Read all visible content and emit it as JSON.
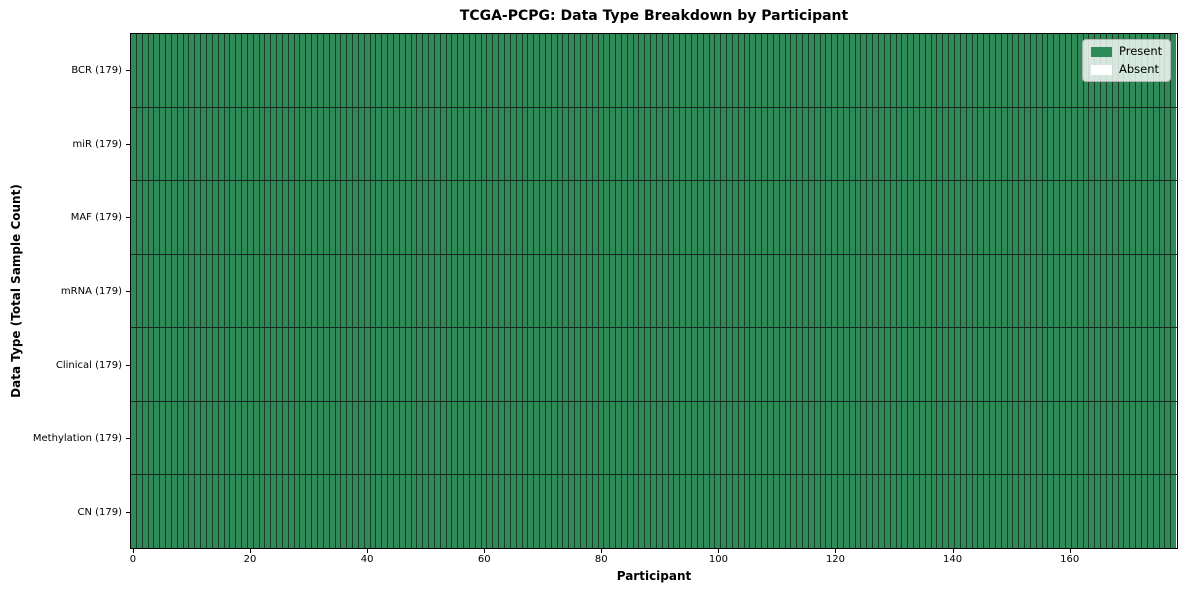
{
  "figure": {
    "title": "TCGA-PCPG: Data Type Breakdown by Participant"
  },
  "legend": {
    "items": [
      {
        "label": "Present",
        "color": "#2e8b57"
      },
      {
        "label": "Absent",
        "color": "#ffffff"
      }
    ]
  },
  "chart_data": {
    "type": "heatmap",
    "title": "TCGA-PCPG: Data Type Breakdown by Participant",
    "xlabel": "Participant",
    "ylabel": "Data Type (Total Sample Count)",
    "legend_position": "upper right",
    "legend_entries": [
      "Present",
      "Absent"
    ],
    "n_participants": 179,
    "x_ticks": [
      0,
      20,
      40,
      60,
      80,
      100,
      120,
      140,
      160
    ],
    "x_range": [
      0,
      179
    ],
    "rows": [
      {
        "label": "BCR (179)",
        "data_type": "BCR",
        "total_samples": 179,
        "present_count": 179,
        "absent_count": 0
      },
      {
        "label": "miR (179)",
        "data_type": "miR",
        "total_samples": 179,
        "present_count": 179,
        "absent_count": 0
      },
      {
        "label": "MAF (179)",
        "data_type": "MAF",
        "total_samples": 179,
        "present_count": 179,
        "absent_count": 0
      },
      {
        "label": "mRNA (179)",
        "data_type": "mRNA",
        "total_samples": 179,
        "present_count": 179,
        "absent_count": 0
      },
      {
        "label": "Clinical (179)",
        "data_type": "Clinical",
        "total_samples": 179,
        "present_count": 179,
        "absent_count": 0
      },
      {
        "label": "Methylation (179)",
        "data_type": "Methylation",
        "total_samples": 179,
        "present_count": 179,
        "absent_count": 0
      },
      {
        "label": "CN (179)",
        "data_type": "CN",
        "total_samples": 179,
        "present_count": 179,
        "absent_count": 0
      }
    ],
    "colors": {
      "present": "#2e8b57",
      "absent": "#ffffff",
      "cell_border": "#1b3b29",
      "row_divider": "#16281d",
      "spine": "#000000"
    }
  }
}
